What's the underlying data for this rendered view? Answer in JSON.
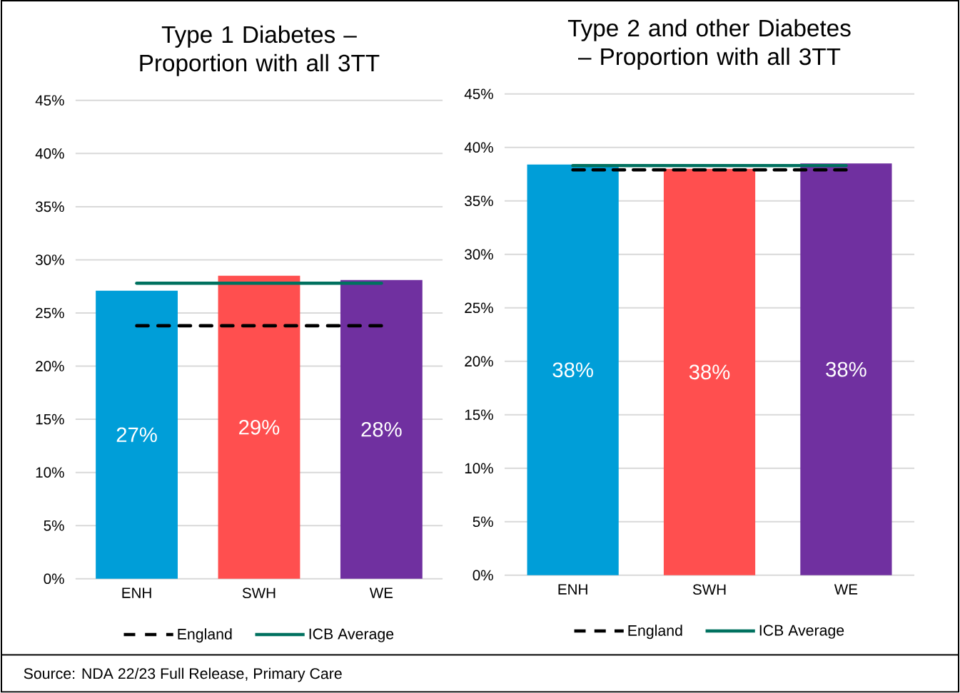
{
  "chart_data": [
    {
      "type": "bar",
      "title": "Type 1 Diabetes – Proportion with all 3TT",
      "categories": [
        "ENH",
        "SWH",
        "WE"
      ],
      "series": [
        {
          "colors": [
            "#009ed8",
            "#ff4f4f",
            "#7030a0"
          ],
          "values": [
            27.1,
            28.5,
            28.1
          ],
          "value_labels": [
            "27%",
            "29%",
            "28%"
          ]
        },
        {
          "type": "line",
          "name": "England",
          "color": "#000000",
          "line_style": "dashed",
          "values": [
            23.8,
            23.8,
            23.8
          ]
        },
        {
          "type": "line",
          "name": "ICB Average",
          "color": "#00715f",
          "line_style": "solid",
          "values": [
            27.8,
            27.8,
            27.8
          ]
        }
      ],
      "ylim": [
        0,
        45
      ],
      "yticks": [
        {
          "value": 0,
          "label": "0%"
        },
        {
          "value": 5,
          "label": "5%"
        },
        {
          "value": 10,
          "label": "10%"
        },
        {
          "value": 15,
          "label": "15%"
        },
        {
          "value": 20,
          "label": "20%"
        },
        {
          "value": 25,
          "label": "25%"
        },
        {
          "value": 30,
          "label": "30%"
        },
        {
          "value": 35,
          "label": "35%"
        },
        {
          "value": 40,
          "label": "40%"
        },
        {
          "value": 45,
          "label": "45%"
        }
      ],
      "grid": "y",
      "legend": "bottom",
      "annotations": [
        "Source: NDA 22/23 Full Release, Primary Care"
      ]
    },
    {
      "type": "bar",
      "title": "Type 2 and other Diabetes – Proportion with all 3TT",
      "categories": [
        "ENH",
        "SWH",
        "WE"
      ],
      "series": [
        {
          "colors": [
            "#009ed8",
            "#ff4f4f",
            "#7030a0"
          ],
          "values": [
            38.4,
            38.0,
            38.5
          ],
          "value_labels": [
            "38%",
            "38%",
            "38%"
          ]
        },
        {
          "type": "line",
          "name": "England",
          "color": "#000000",
          "line_style": "dashed",
          "values": [
            37.9,
            37.9,
            37.9
          ]
        },
        {
          "type": "line",
          "name": "ICB Average",
          "color": "#00715f",
          "line_style": "solid",
          "values": [
            38.3,
            38.3,
            38.3
          ]
        }
      ],
      "ylim": [
        0,
        45
      ],
      "yticks": [
        {
          "value": 0,
          "label": "0%"
        },
        {
          "value": 5,
          "label": "5%"
        },
        {
          "value": 10,
          "label": "10%"
        },
        {
          "value": 15,
          "label": "15%"
        },
        {
          "value": 20,
          "label": "20%"
        },
        {
          "value": 25,
          "label": "25%"
        },
        {
          "value": 30,
          "label": "30%"
        },
        {
          "value": 35,
          "label": "35%"
        },
        {
          "value": 40,
          "label": "40%"
        },
        {
          "value": 45,
          "label": "45%"
        }
      ],
      "grid": "y",
      "legend": "bottom"
    }
  ]
}
